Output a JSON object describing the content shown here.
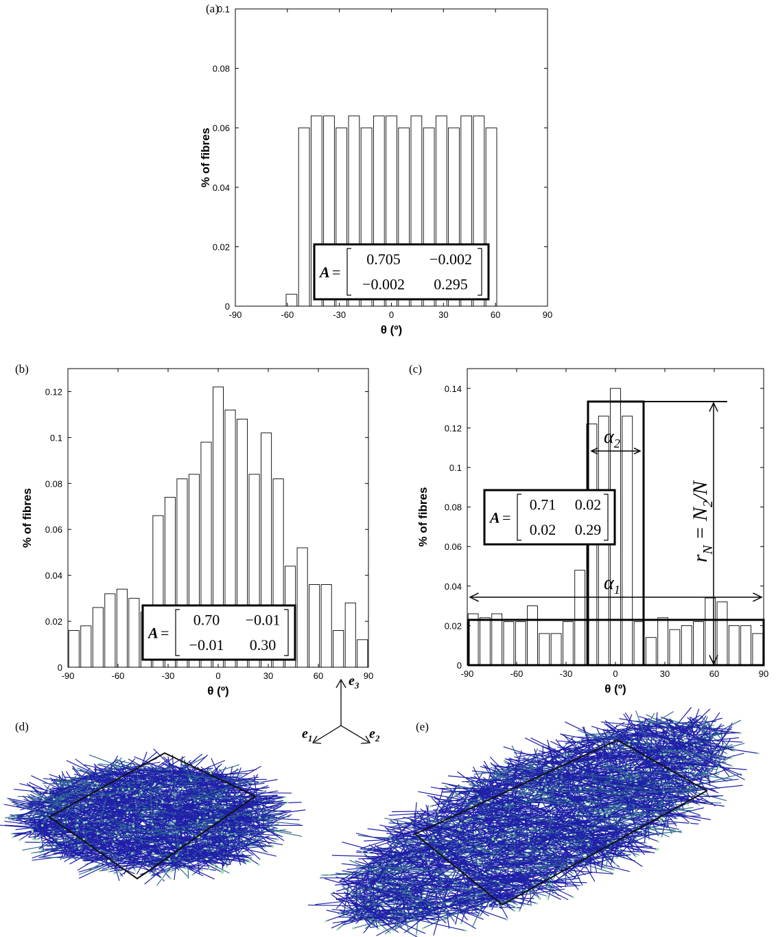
{
  "chart_data": [
    {
      "type": "histogram",
      "label": "(a)",
      "xlabel": "θ (º)",
      "ylabel": "% of fibres",
      "bins": [
        -61.2,
        -54,
        -46.8,
        -39.6,
        -32.4,
        -25.2,
        -18,
        -10.8,
        -3.6,
        3.6,
        10.8,
        18,
        25.2,
        32.4,
        39.6,
        46.8,
        54,
        61.2
      ],
      "values": [
        0.004,
        0.06,
        0.064,
        0.064,
        0.06,
        0.064,
        0.06,
        0.064,
        0.064,
        0.06,
        0.064,
        0.06,
        0.064,
        0.06,
        0.064,
        0.064,
        0.06
      ],
      "color": "#ffffff",
      "xlim": [
        -90,
        90
      ],
      "ylim": [
        0,
        0.1
      ],
      "xticks": [
        -90,
        -60,
        -30,
        0,
        30,
        60,
        90
      ],
      "yticks": [
        0,
        0.02,
        0.04,
        0.06,
        0.08,
        0.1
      ],
      "matrix": {
        "symbol": "A",
        "equals": "=",
        "rows": [
          [
            "0.705",
            "−0.002"
          ],
          [
            "−0.002",
            "0.295"
          ]
        ]
      }
    },
    {
      "type": "histogram",
      "label": "(b)",
      "xlabel": "θ (º)",
      "ylabel": "% of fibres",
      "bins": [
        -90,
        -82.8,
        -75.6,
        -68.4,
        -61.2,
        -54,
        -46.8,
        -39.6,
        -32.4,
        -25.2,
        -18,
        -10.8,
        -3.6,
        3.6,
        10.8,
        18,
        25.2,
        32.4,
        39.6,
        46.8,
        54,
        61.2,
        68.4,
        75.6,
        82.8,
        90
      ],
      "values": [
        0.016,
        0.018,
        0.026,
        0.032,
        0.034,
        0.03,
        0.024,
        0.066,
        0.074,
        0.082,
        0.084,
        0.098,
        0.122,
        0.112,
        0.108,
        0.084,
        0.102,
        0.082,
        0.044,
        0.052,
        0.036,
        0.036,
        0.016,
        0.028,
        0.012
      ],
      "color": "#ffffff",
      "xlim": [
        -90,
        90
      ],
      "ylim": [
        0,
        0.13
      ],
      "xticks": [
        -90,
        -60,
        -30,
        0,
        30,
        60,
        90
      ],
      "yticks": [
        0,
        0.02,
        0.04,
        0.06,
        0.08,
        0.1,
        0.12
      ],
      "matrix": {
        "symbol": "A",
        "equals": "=",
        "rows": [
          [
            "0.70",
            "−0.01"
          ],
          [
            "−0.01",
            "0.30"
          ]
        ]
      }
    },
    {
      "type": "histogram",
      "label": "(c)",
      "xlabel": "θ (º)",
      "ylabel": "% of fibres",
      "bins": [
        -90,
        -82.8,
        -75.6,
        -68.4,
        -61.2,
        -54,
        -46.8,
        -39.6,
        -32.4,
        -25.2,
        -18,
        -10.8,
        -3.6,
        3.6,
        10.8,
        18,
        25.2,
        32.4,
        39.6,
        46.8,
        54,
        61.2,
        68.4,
        75.6,
        82.8,
        90
      ],
      "values": [
        0.026,
        0.024,
        0.026,
        0.022,
        0.022,
        0.03,
        0.016,
        0.016,
        0.022,
        0.048,
        0.122,
        0.126,
        0.14,
        0.126,
        0.022,
        0.014,
        0.024,
        0.018,
        0.02,
        0.022,
        0.034,
        0.032,
        0.02,
        0.02,
        0.016
      ],
      "color": "#ffffff",
      "xlim": [
        -90,
        90
      ],
      "ylim": [
        0,
        0.15
      ],
      "xticks": [
        -90,
        -60,
        -30,
        0,
        30,
        60,
        90
      ],
      "yticks": [
        0,
        0.02,
        0.04,
        0.06,
        0.08,
        0.1,
        0.12,
        0.14
      ],
      "matrix": {
        "symbol": "A",
        "equals": "=",
        "rows": [
          [
            "0.71",
            "0.02"
          ],
          [
            "0.02",
            "0.29"
          ]
        ]
      },
      "annotations": {
        "alpha1": {
          "symbol": "α",
          "sub": "1"
        },
        "alpha2": {
          "symbol": "α",
          "sub": "2"
        },
        "ratio": [
          "r",
          "N",
          " = N",
          "2",
          "/N"
        ]
      }
    }
  ],
  "diagram": {
    "labels": [
      "(d)",
      "(e)"
    ],
    "axes": [
      {
        "symbol": "e",
        "sub": "1"
      },
      {
        "symbol": "e",
        "sub": "2"
      },
      {
        "symbol": "e",
        "sub": "3"
      }
    ]
  }
}
